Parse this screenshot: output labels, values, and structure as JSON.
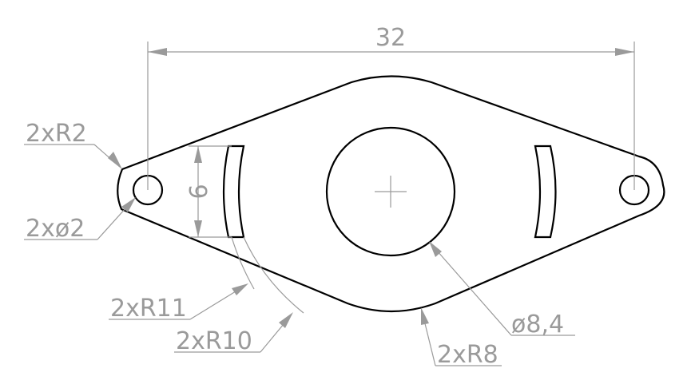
{
  "drawing": {
    "part_color": "#000000",
    "dimension_color": "#9a9a9a",
    "background": "#ffffff"
  },
  "dimensions": {
    "overall_length": "32",
    "slot_height": "6",
    "end_radius": "2xR2",
    "end_hole": "2xø2",
    "slot_outer_radius": "2xR11",
    "slot_inner_radius": "2xR10",
    "waist_radius": "2xR8",
    "center_hole": "ø8,4"
  }
}
